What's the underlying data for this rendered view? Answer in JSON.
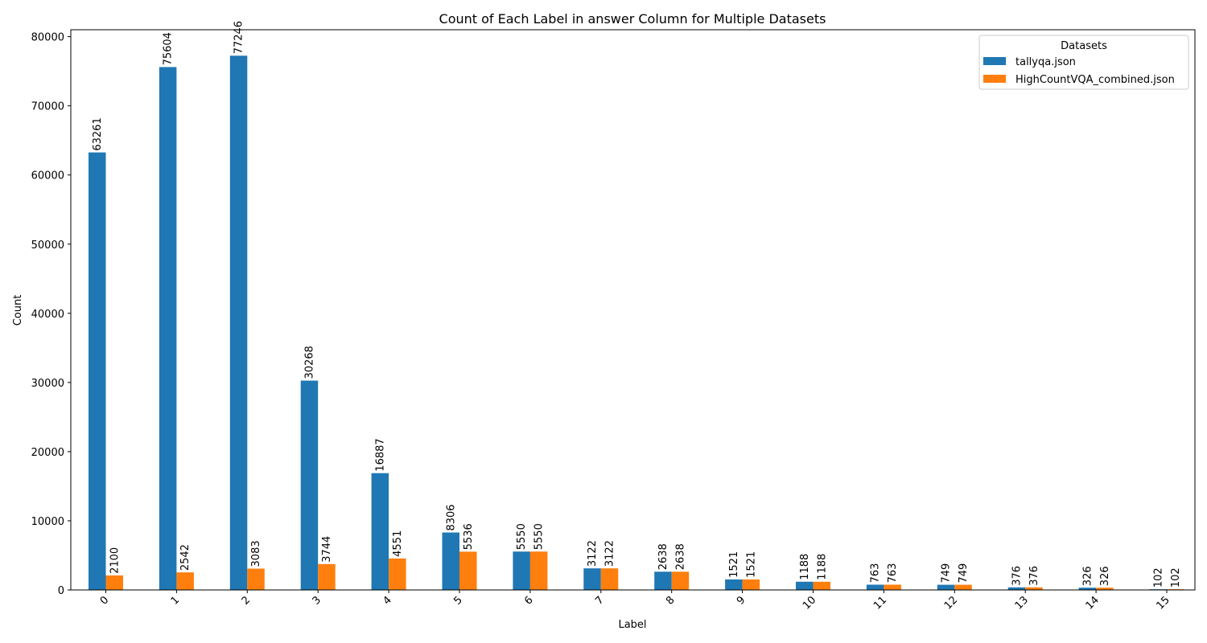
{
  "chart_data": {
    "type": "bar",
    "title": "Count of Each Label in answer Column for Multiple Datasets",
    "xlabel": "Label",
    "ylabel": "Count",
    "ylim": [
      0,
      81000
    ],
    "yticks": [
      0,
      10000,
      20000,
      30000,
      40000,
      50000,
      60000,
      70000,
      80000
    ],
    "categories": [
      "0",
      "1",
      "2",
      "3",
      "4",
      "5",
      "6",
      "7",
      "8",
      "9",
      "10",
      "11",
      "12",
      "13",
      "14",
      "15"
    ],
    "series": [
      {
        "name": "tallyqa.json",
        "color": "#1f77b4",
        "values": [
          63261,
          75604,
          77246,
          30268,
          16887,
          8306,
          5550,
          3122,
          2638,
          1521,
          1188,
          763,
          749,
          376,
          326,
          102
        ],
        "labels": [
          "63261",
          "75604",
          "77246",
          "30268",
          "16887",
          "8306",
          "5550",
          "3122",
          "2638",
          "1521",
          "1188",
          "763",
          "749",
          "376",
          "326",
          "102"
        ]
      },
      {
        "name": "HighCountVQA_combined.json",
        "color": "#ff7f0e",
        "values": [
          2100,
          2542,
          3083,
          3744,
          4551,
          5536,
          5550,
          3122,
          2638,
          1521,
          1188,
          763,
          749,
          376,
          326,
          102
        ],
        "labels": [
          "2100",
          "2542",
          "3083",
          "3744",
          "4551",
          "5536",
          "5550",
          "3122",
          "2638",
          "1521",
          "1188",
          "763",
          "749",
          "376",
          "326",
          "102"
        ]
      }
    ],
    "legend": {
      "title": "Datasets",
      "position": "top-right"
    },
    "grid": false
  }
}
